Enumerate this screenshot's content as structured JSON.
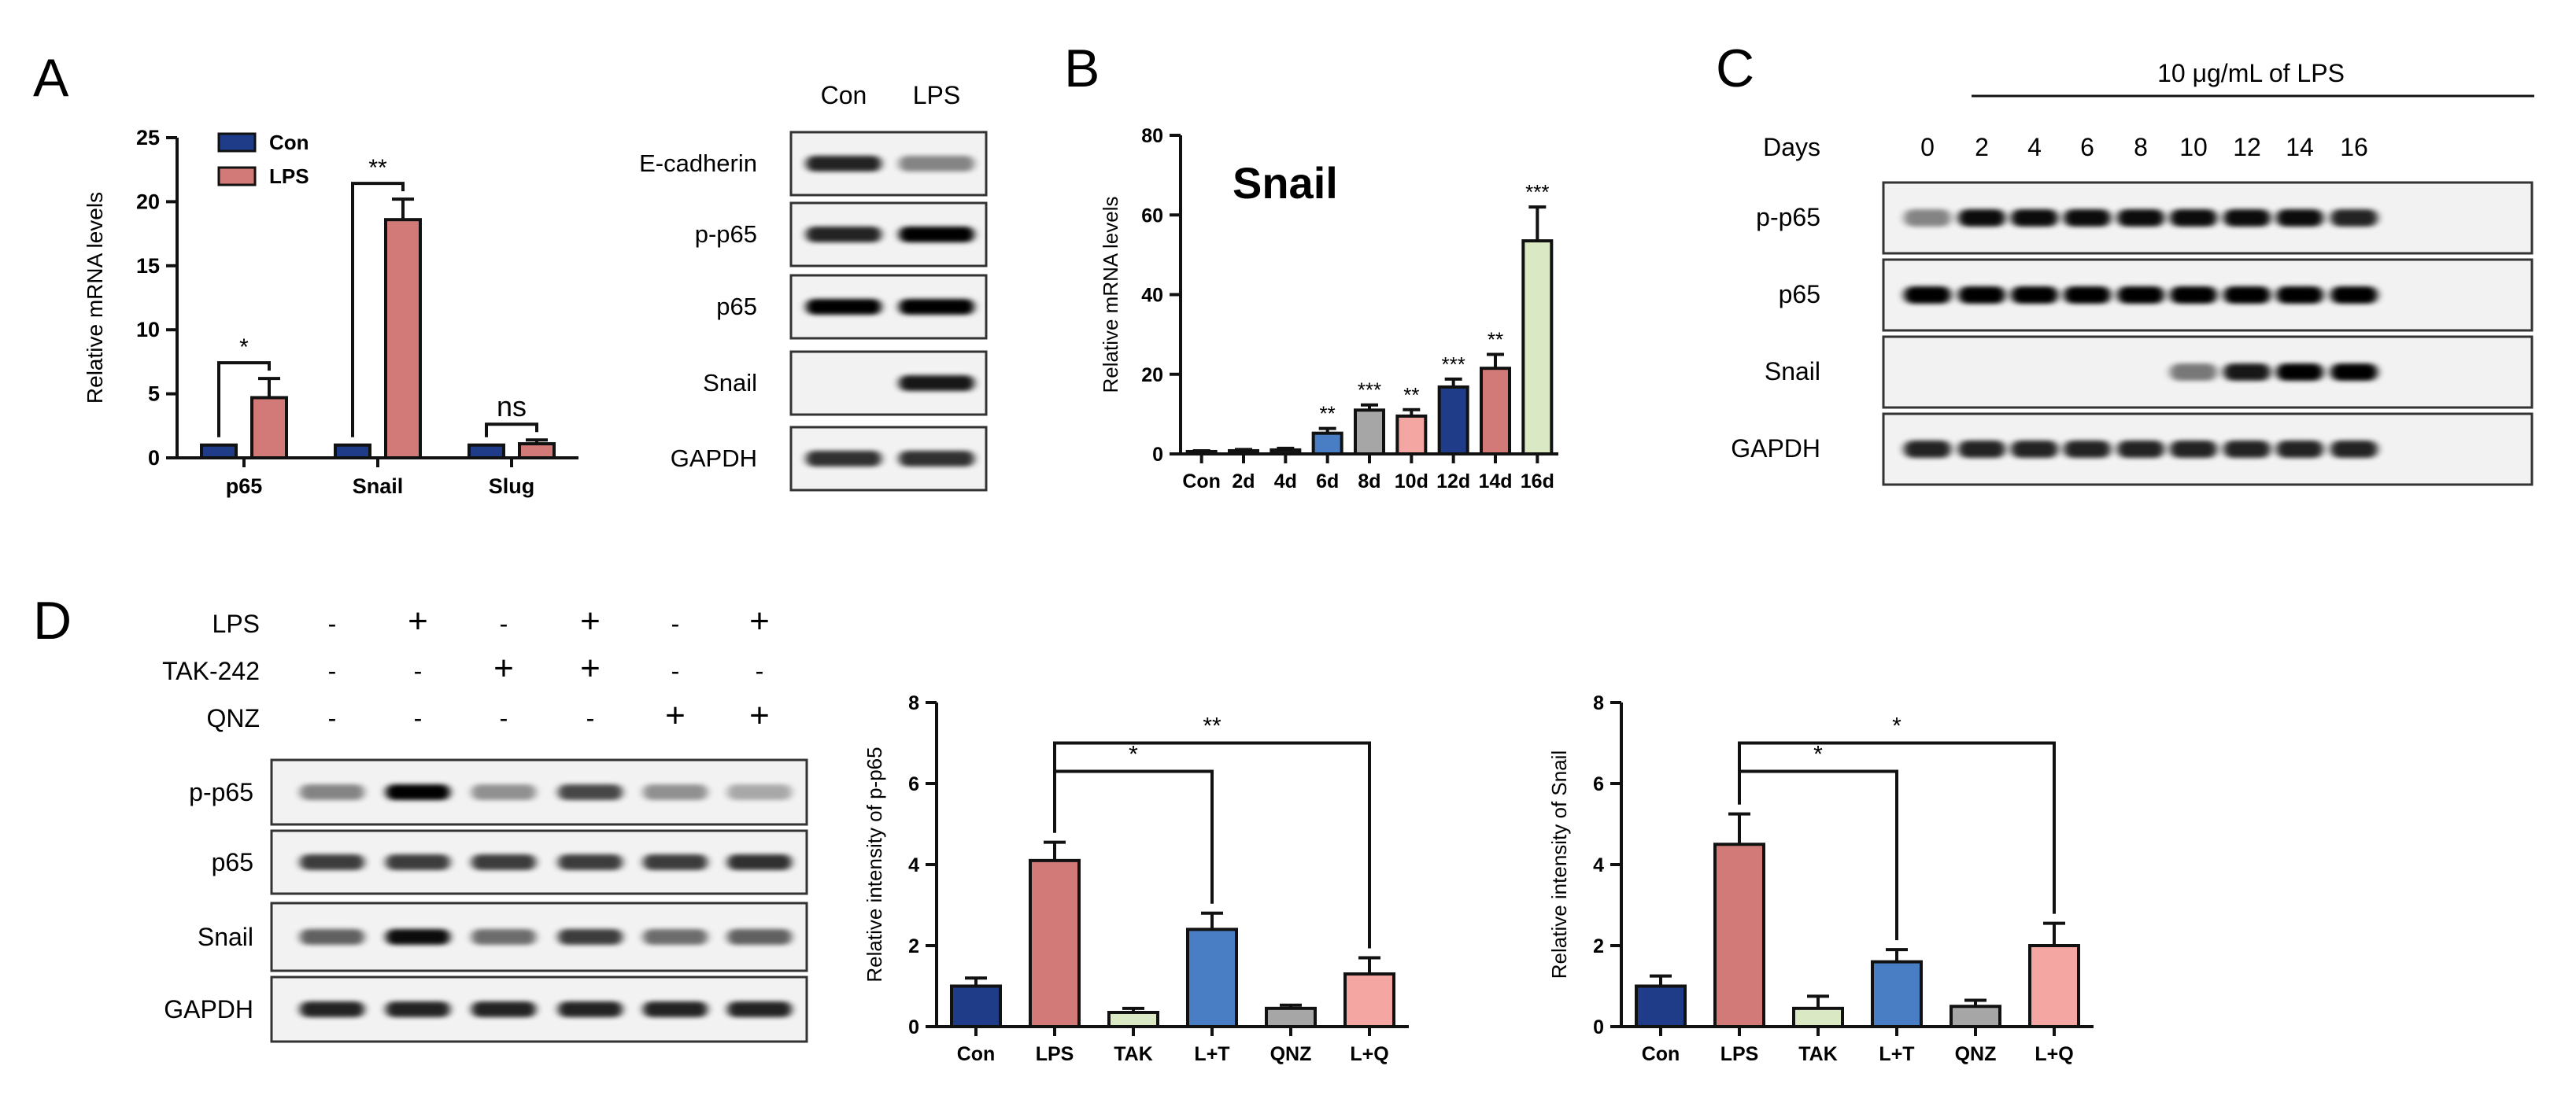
{
  "panel_labels": [
    "A",
    "B",
    "C",
    "D"
  ],
  "chart_data": [
    {
      "id": "A",
      "type": "bar",
      "title": "",
      "xlabel": "",
      "ylabel": "Relative mRNA levels",
      "ylim": [
        0,
        25
      ],
      "yticks": [
        "0",
        "5",
        "10",
        "15",
        "20",
        "25"
      ],
      "categories": [
        "p65",
        "Snail",
        "Slug"
      ],
      "series": [
        {
          "name": "Con",
          "color": "#1f3c88",
          "values": [
            1.0,
            1.0,
            1.0
          ],
          "errors": [
            0,
            0,
            0
          ]
        },
        {
          "name": "LPS",
          "color": "#d17a78",
          "values": [
            4.7,
            18.6,
            1.1
          ],
          "errors": [
            1.5,
            1.6,
            0.3
          ]
        }
      ],
      "legend": [
        "Con",
        "LPS"
      ],
      "annotations": [
        "*",
        "**",
        "ns"
      ]
    },
    {
      "id": "B",
      "type": "bar",
      "title": "Snail",
      "xlabel": "",
      "ylabel": "Relative mRNA levels",
      "ylim": [
        0,
        80
      ],
      "yticks": [
        "0",
        "20",
        "40",
        "60",
        "80"
      ],
      "categories": [
        "Con",
        "2d",
        "4d",
        "6d",
        "8d",
        "10d",
        "12d",
        "14d",
        "16d"
      ],
      "values": [
        0.6,
        0.8,
        1.0,
        5.2,
        11.0,
        9.5,
        16.8,
        21.5,
        53.5
      ],
      "errors": [
        0.2,
        0.3,
        0.4,
        1.2,
        1.3,
        1.6,
        2.0,
        3.5,
        8.5
      ],
      "colors": [
        "#1a1a1a",
        "#1a1a1a",
        "#1a1a1a",
        "#4a7ec4",
        "#a6a6a6",
        "#f4a6a2",
        "#1f3c88",
        "#d17a78",
        "#dbe8c4"
      ],
      "significance": [
        "",
        "",
        "",
        "**",
        "***",
        "**",
        "***",
        "**",
        "***"
      ]
    },
    {
      "id": "D-p65",
      "type": "bar",
      "title": "",
      "xlabel": "",
      "ylabel": "Relative intensity of p-p65",
      "ylim": [
        0,
        8
      ],
      "yticks": [
        "0",
        "2",
        "4",
        "6",
        "8"
      ],
      "categories": [
        "Con",
        "LPS",
        "TAK",
        "L+T",
        "QNZ",
        "L+Q"
      ],
      "values": [
        1.0,
        4.1,
        0.35,
        2.4,
        0.45,
        1.3
      ],
      "errors": [
        0.2,
        0.45,
        0.1,
        0.4,
        0.08,
        0.4
      ],
      "colors": [
        "#1f3c88",
        "#d17a78",
        "#dbe8c4",
        "#4a7ec4",
        "#a6a6a6",
        "#f4a6a2"
      ],
      "brackets": [
        {
          "from": "LPS",
          "to": "L+T",
          "label": "*"
        },
        {
          "from": "LPS",
          "to": "L+Q",
          "label": "**"
        }
      ]
    },
    {
      "id": "D-snail",
      "type": "bar",
      "title": "",
      "xlabel": "",
      "ylabel": "Relative intensity of Snail",
      "ylim": [
        0,
        8
      ],
      "yticks": [
        "0",
        "2",
        "4",
        "6",
        "8"
      ],
      "categories": [
        "Con",
        "LPS",
        "TAK",
        "L+T",
        "QNZ",
        "L+Q"
      ],
      "values": [
        1.0,
        4.5,
        0.45,
        1.6,
        0.5,
        2.0
      ],
      "errors": [
        0.25,
        0.75,
        0.3,
        0.3,
        0.15,
        0.55
      ],
      "colors": [
        "#1f3c88",
        "#d17a78",
        "#dbe8c4",
        "#4a7ec4",
        "#a6a6a6",
        "#f4a6a2"
      ],
      "brackets": [
        {
          "from": "LPS",
          "to": "L+T",
          "label": "*"
        },
        {
          "from": "LPS",
          "to": "L+Q",
          "label": "*"
        }
      ]
    }
  ],
  "blots": {
    "A": {
      "columns": [
        "Con",
        "LPS"
      ],
      "rows": [
        {
          "label": "E-cadherin",
          "intensity": [
            0.85,
            0.45
          ]
        },
        {
          "label": "p-p65",
          "intensity": [
            0.85,
            1.0
          ]
        },
        {
          "label": "p65",
          "intensity": [
            1.0,
            1.0
          ]
        },
        {
          "label": "Snail",
          "intensity": [
            0.0,
            0.9
          ]
        },
        {
          "label": "GAPDH",
          "intensity": [
            0.8,
            0.8
          ]
        }
      ]
    },
    "C": {
      "header": "10 μg/mL of LPS",
      "days_label": "Days",
      "columns": [
        "0",
        "2",
        "4",
        "6",
        "8",
        "10",
        "12",
        "14",
        "16"
      ],
      "rows": [
        {
          "label": "p-p65",
          "intensity": [
            0.45,
            0.95,
            0.95,
            0.95,
            0.95,
            0.95,
            0.95,
            0.95,
            0.85
          ]
        },
        {
          "label": "p65",
          "intensity": [
            1.0,
            1.0,
            1.0,
            1.0,
            1.0,
            1.0,
            1.0,
            1.0,
            1.0
          ]
        },
        {
          "label": "Snail",
          "intensity": [
            0.0,
            0.0,
            0.0,
            0.0,
            0.0,
            0.5,
            0.9,
            1.0,
            1.0
          ]
        },
        {
          "label": "GAPDH",
          "intensity": [
            0.85,
            0.85,
            0.85,
            0.85,
            0.85,
            0.85,
            0.85,
            0.85,
            0.85
          ]
        }
      ]
    },
    "D": {
      "treatments": [
        {
          "label": "LPS",
          "signs": [
            "-",
            "+",
            "-",
            "+",
            "-",
            "+"
          ]
        },
        {
          "label": "TAK-242",
          "signs": [
            "-",
            "-",
            "+",
            "+",
            "-",
            "-"
          ]
        },
        {
          "label": "QNZ",
          "signs": [
            "-",
            "-",
            "-",
            "-",
            "+",
            "+"
          ]
        }
      ],
      "rows": [
        {
          "label": "p-p65",
          "intensity": [
            0.45,
            1.0,
            0.4,
            0.7,
            0.4,
            0.3
          ]
        },
        {
          "label": "p65",
          "intensity": [
            0.75,
            0.75,
            0.75,
            0.75,
            0.75,
            0.8
          ]
        },
        {
          "label": "Snail",
          "intensity": [
            0.6,
            0.95,
            0.55,
            0.75,
            0.55,
            0.6
          ]
        },
        {
          "label": "GAPDH",
          "intensity": [
            0.85,
            0.85,
            0.85,
            0.85,
            0.85,
            0.85
          ]
        }
      ]
    }
  }
}
